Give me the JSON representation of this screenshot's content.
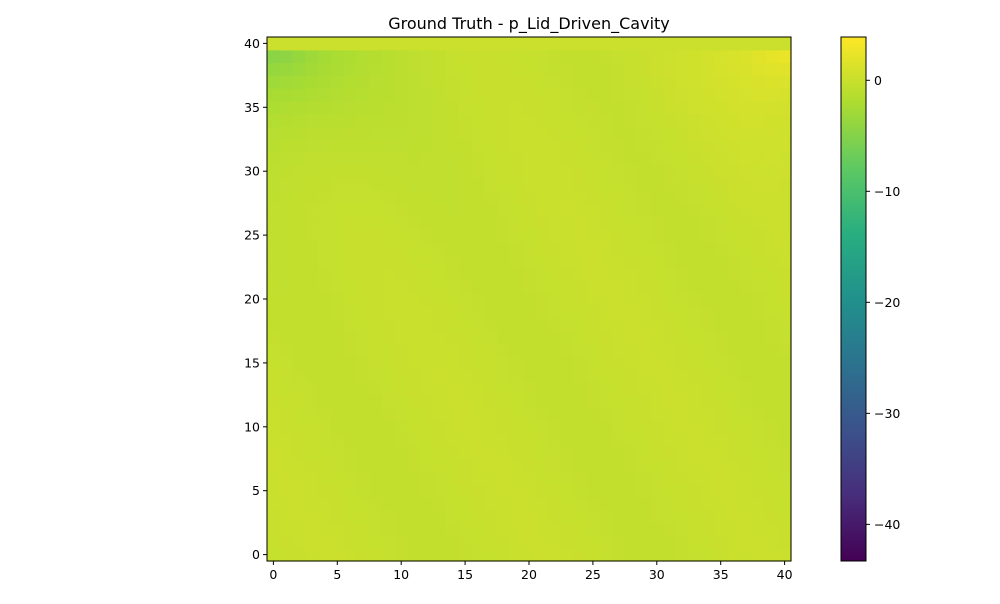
{
  "chart_data": {
    "type": "heatmap",
    "title": "Ground Truth - p_Lid_Driven_Cavity",
    "xlabel": "",
    "ylabel": "",
    "xlim": [
      -0.5,
      40.5
    ],
    "ylim": [
      -0.5,
      40.5
    ],
    "grid": false,
    "colormap": "viridis",
    "x_ticks": [
      0,
      5,
      10,
      15,
      20,
      25,
      30,
      35,
      40
    ],
    "x_tick_labels": [
      "0",
      "5",
      "10",
      "15",
      "20",
      "25",
      "30",
      "35",
      "40"
    ],
    "y_ticks": [
      0,
      5,
      10,
      15,
      20,
      25,
      30,
      35,
      40
    ],
    "y_tick_labels": [
      "0",
      "5",
      "10",
      "15",
      "20",
      "25",
      "30",
      "35",
      "40"
    ],
    "colorbar": {
      "vmin": -43.3,
      "vmax": 3.9,
      "ticks": [
        0,
        -10,
        -20,
        -30,
        -40
      ],
      "tick_labels": [
        "0",
        "−10",
        "−20",
        "−30",
        "−40"
      ]
    },
    "grid_shape": [
      41,
      41
    ],
    "field_description": "pressure field approximately 0 across the cavity; top row (y=40) about 0; low pressure (about -4 to -6) near top-left corner below the lid; high pressure (about +3.5) at top-right corner",
    "approx_values": {
      "background": 0.0,
      "top_left_min": -5.8,
      "top_right_max": 3.6,
      "lid_row": 0.3
    }
  }
}
